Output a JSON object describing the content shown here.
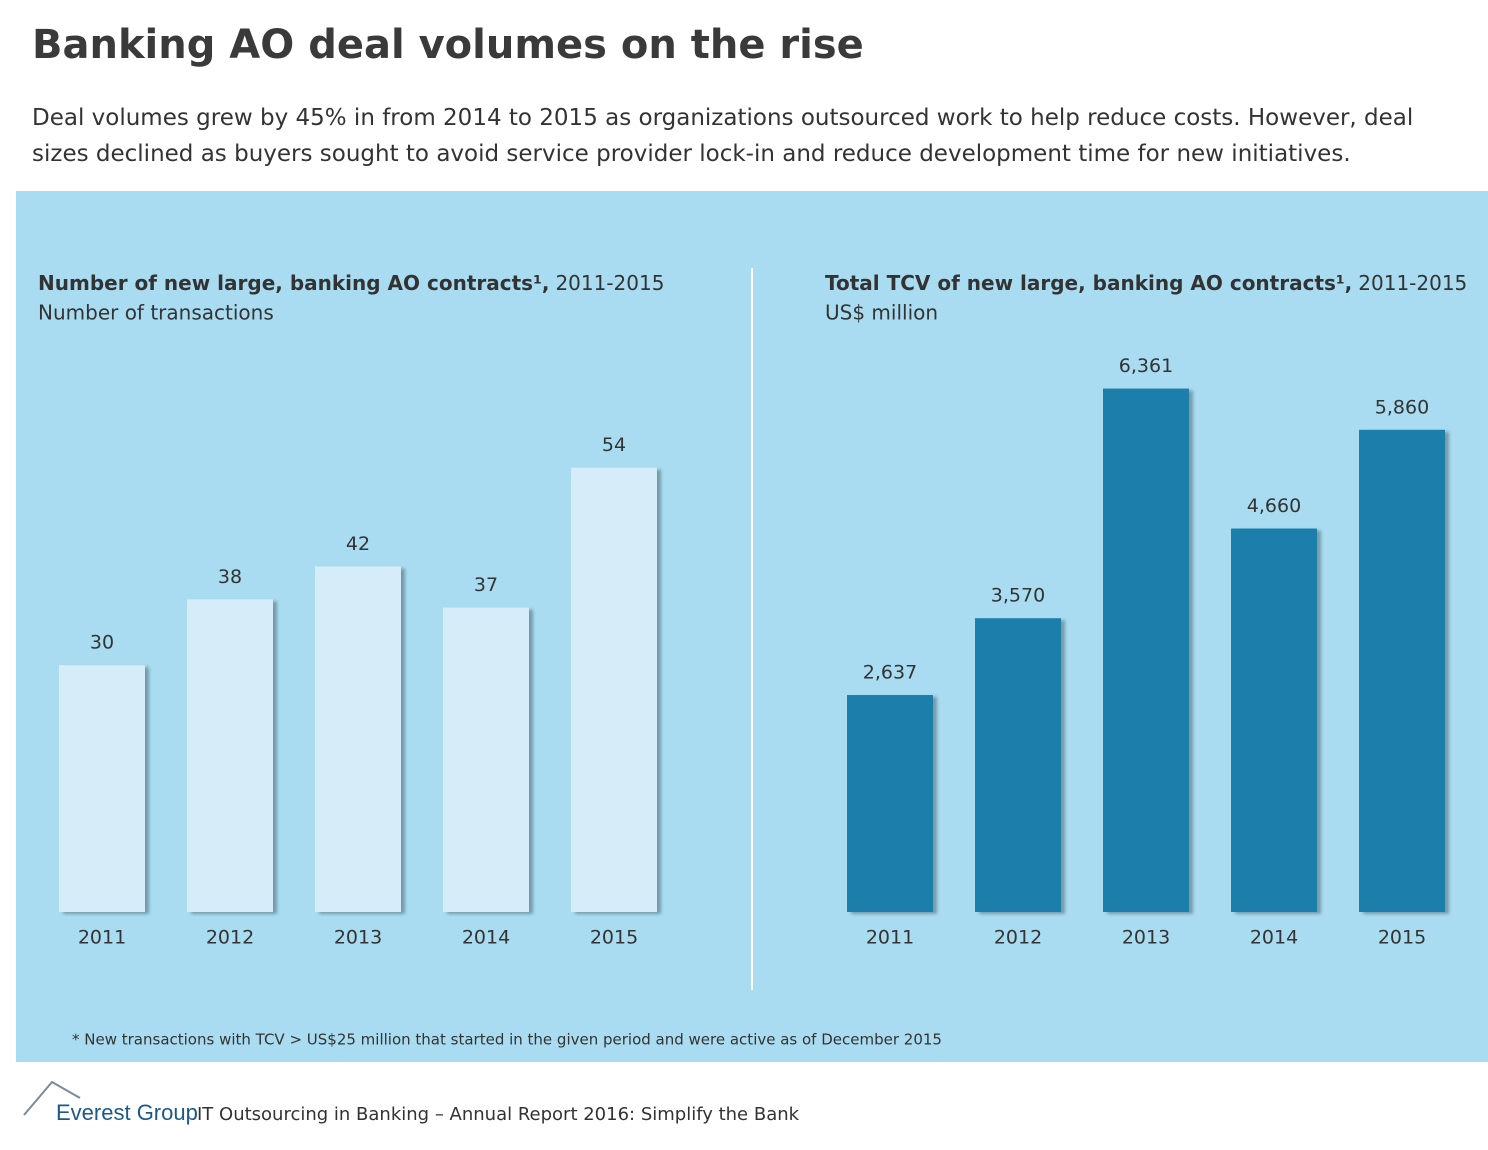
{
  "title": "Banking AO deal volumes on the rise",
  "subtitle": "Deal volumes grew by 45% in from 2014 to 2015 as organizations outsourced work to help reduce costs. However, deal sizes declined as buyers sought to avoid service provider lock-in and reduce development time for new initiatives.",
  "chart_data": [
    {
      "type": "bar",
      "title": "Number of new large, banking AO contracts¹,",
      "title_period": "2011-2015",
      "subtitle": "Number of transactions",
      "categories": [
        "2011",
        "2012",
        "2013",
        "2014",
        "2015"
      ],
      "values": [
        30,
        38,
        42,
        37,
        54
      ],
      "color": "#d6ecf9",
      "ylim": [
        0,
        70
      ]
    },
    {
      "type": "bar",
      "title": "Total TCV of new large, banking AO contracts¹,",
      "title_period": "2011-2015",
      "subtitle": "US$ million",
      "categories": [
        "2011",
        "2012",
        "2013",
        "2014",
        "2015"
      ],
      "values": [
        2637,
        3570,
        6361,
        4660,
        5860
      ],
      "value_labels": [
        "2,637",
        "3,570",
        "6,361",
        "4,660",
        "5,860"
      ],
      "color": "#1a7fab",
      "ylim": [
        0,
        7000
      ]
    }
  ],
  "footnote": "* New transactions with TCV > US$25 million that started in the given period and were active as of December 2015",
  "footer": {
    "brand": "Everest Group",
    "text": "IT Outsourcing in Banking – Annual Report 2016: Simplify the Bank"
  }
}
